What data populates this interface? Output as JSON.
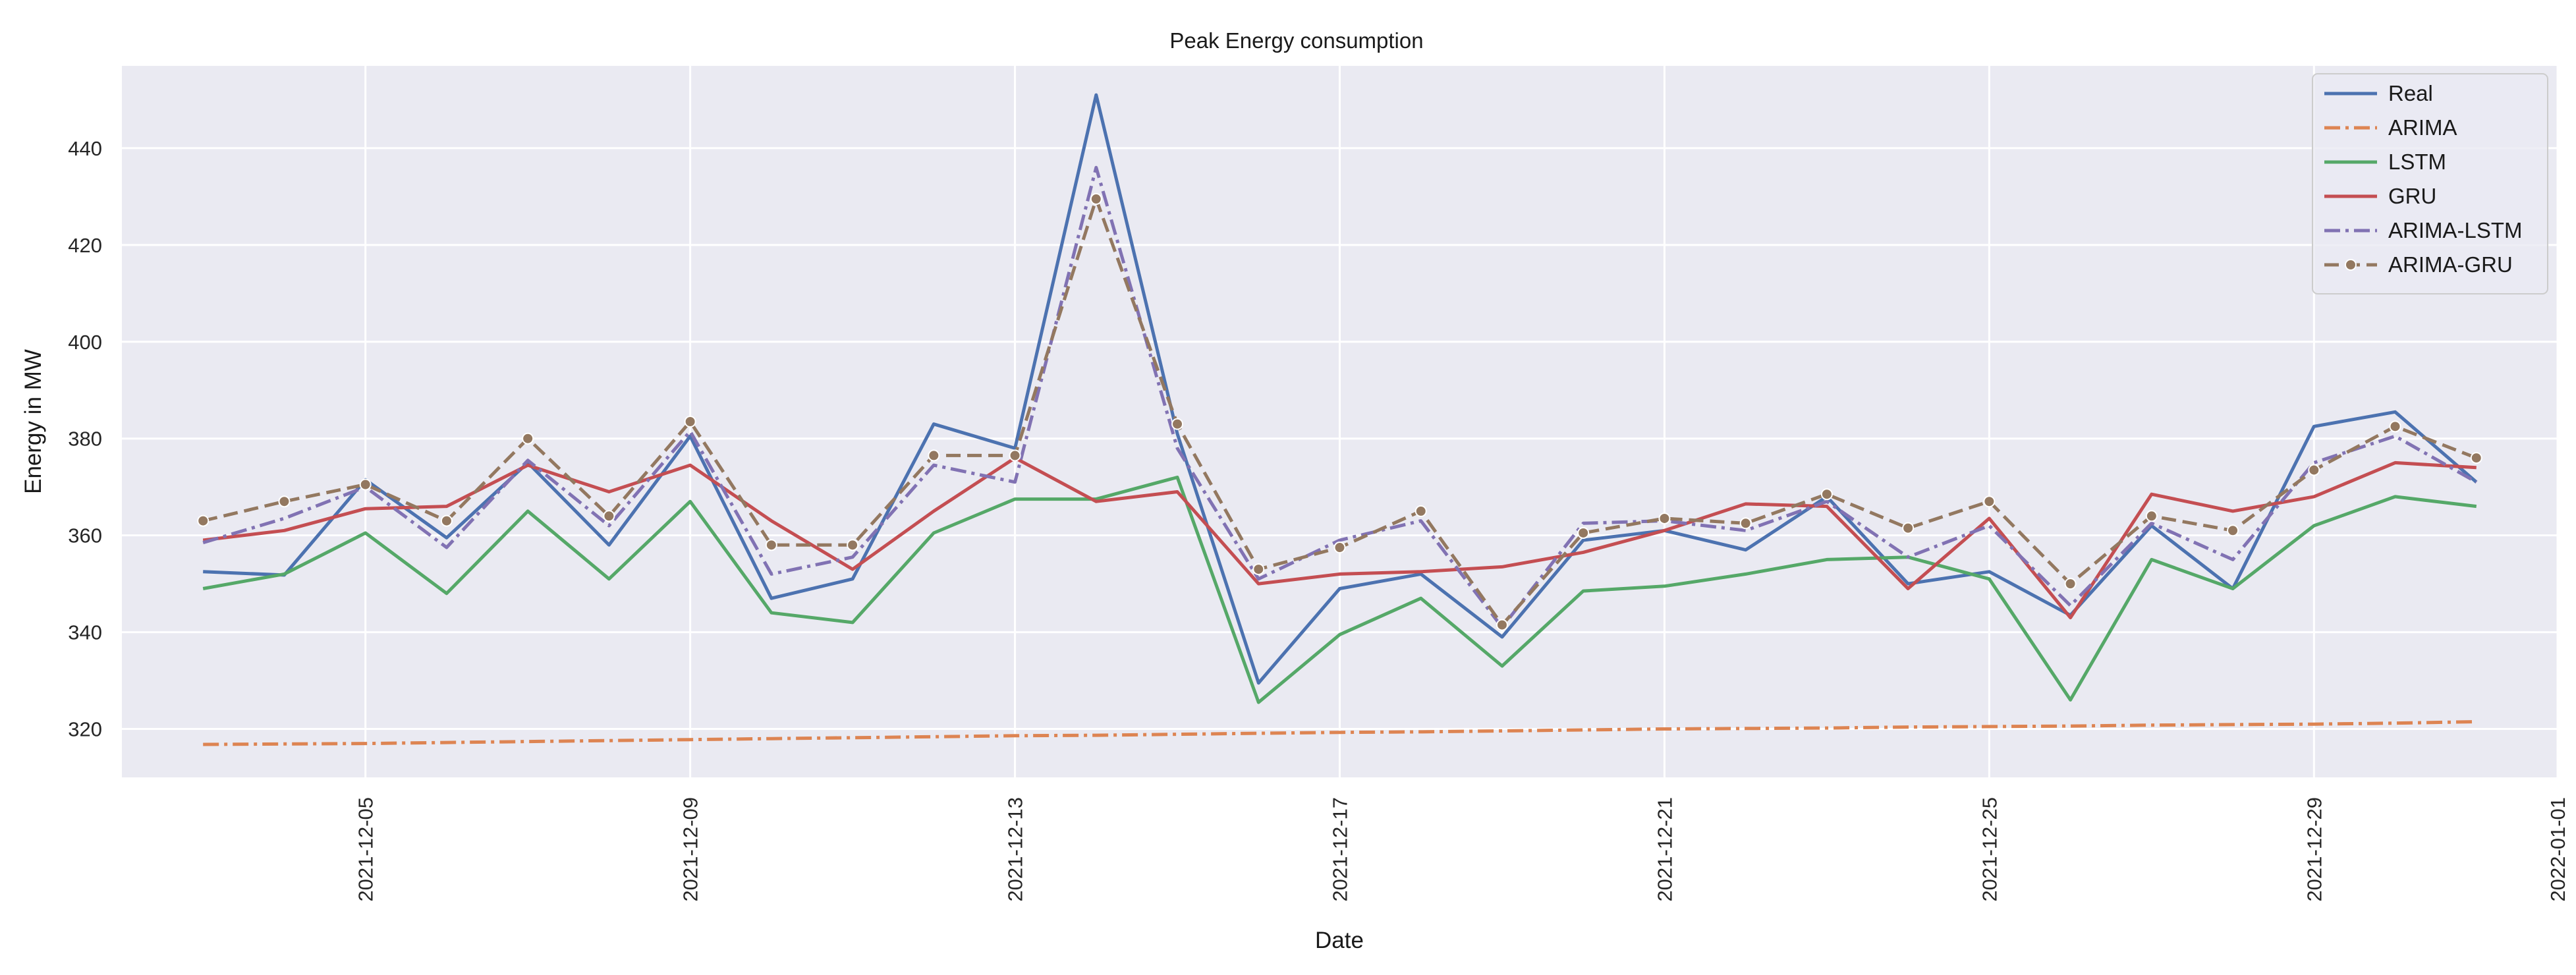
{
  "chart_data": {
    "type": "line",
    "title": "Peak Energy consumption",
    "xlabel": "Date",
    "ylabel": "Energy in MW",
    "xlim": [
      "2021-12-02",
      "2022-01-01"
    ],
    "ylim": [
      310,
      457
    ],
    "yticks": [
      320,
      340,
      360,
      380,
      400,
      420,
      440
    ],
    "xticks": [
      "2021-12-05",
      "2021-12-09",
      "2021-12-13",
      "2021-12-17",
      "2021-12-21",
      "2021-12-25",
      "2021-12-29",
      "2022-01-01"
    ],
    "grid": true,
    "legend_position": "top-right",
    "x": [
      "2021-12-03",
      "2021-12-04",
      "2021-12-05",
      "2021-12-06",
      "2021-12-07",
      "2021-12-08",
      "2021-12-09",
      "2021-12-10",
      "2021-12-11",
      "2021-12-12",
      "2021-12-13",
      "2021-12-14",
      "2021-12-15",
      "2021-12-16",
      "2021-12-17",
      "2021-12-18",
      "2021-12-19",
      "2021-12-20",
      "2021-12-21",
      "2021-12-22",
      "2021-12-23",
      "2021-12-24",
      "2021-12-25",
      "2021-12-26",
      "2021-12-27",
      "2021-12-28",
      "2021-12-29",
      "2021-12-30",
      "2021-12-31"
    ],
    "series": [
      {
        "name": "Real",
        "color": "#4c72b0",
        "style": "solid",
        "marker": "none",
        "values": [
          352.5,
          351.8,
          371.5,
          359.5,
          375.0,
          358.0,
          380.5,
          347.0,
          351.0,
          383.0,
          378.0,
          451.0,
          381.0,
          329.5,
          349.0,
          352.0,
          339.0,
          359.0,
          361.0,
          357.0,
          368.0,
          350.0,
          352.5,
          343.5,
          362.0,
          349.0,
          382.5,
          385.5,
          371.0
        ]
      },
      {
        "name": "ARIMA",
        "color": "#dd8452",
        "style": "dashdot",
        "marker": "none",
        "values": [
          316.8,
          316.9,
          317.0,
          317.2,
          317.4,
          317.6,
          317.8,
          318.0,
          318.2,
          318.4,
          318.6,
          318.7,
          318.9,
          319.1,
          319.3,
          319.4,
          319.6,
          319.8,
          320.0,
          320.1,
          320.2,
          320.4,
          320.5,
          320.6,
          320.8,
          320.9,
          321.0,
          321.2,
          321.5
        ]
      },
      {
        "name": "LSTM",
        "color": "#55a868",
        "style": "solid",
        "marker": "none",
        "values": [
          349.0,
          352.0,
          360.5,
          348.0,
          365.0,
          351.0,
          367.0,
          344.0,
          342.0,
          360.5,
          367.5,
          367.5,
          372.0,
          325.5,
          339.5,
          347.0,
          333.0,
          348.5,
          349.5,
          352.0,
          355.0,
          355.5,
          351.0,
          326.0,
          355.0,
          349.0,
          362.0,
          368.0,
          366.0
        ]
      },
      {
        "name": "GRU",
        "color": "#c44e52",
        "style": "solid",
        "marker": "none",
        "values": [
          359.0,
          361.0,
          365.5,
          366.0,
          374.5,
          369.0,
          374.5,
          363.0,
          353.0,
          365.0,
          376.0,
          367.0,
          369.0,
          350.0,
          352.0,
          352.5,
          353.5,
          356.5,
          361.0,
          366.5,
          366.0,
          349.0,
          363.5,
          343.0,
          368.5,
          365.0,
          368.0,
          375.0,
          374.0
        ]
      },
      {
        "name": "ARIMA-LSTM",
        "color": "#8172b3",
        "style": "dashdot",
        "marker": "none",
        "values": [
          358.5,
          363.5,
          370.0,
          357.5,
          375.5,
          362.0,
          381.5,
          352.0,
          355.5,
          374.5,
          371.0,
          436.0,
          378.0,
          351.0,
          359.0,
          363.0,
          341.0,
          362.5,
          363.0,
          361.0,
          367.0,
          355.5,
          362.0,
          345.5,
          362.5,
          355.0,
          375.0,
          380.5,
          371.0
        ]
      },
      {
        "name": "ARIMA-GRU",
        "color": "#937860",
        "style": "dashed",
        "marker": "circle",
        "values": [
          363.0,
          367.0,
          370.5,
          363.0,
          380.0,
          364.0,
          383.5,
          358.0,
          358.0,
          376.5,
          376.5,
          429.5,
          383.0,
          353.0,
          357.5,
          365.0,
          341.5,
          360.5,
          363.5,
          362.5,
          368.5,
          361.5,
          367.0,
          350.0,
          364.0,
          361.0,
          373.5,
          382.5,
          376.0
        ]
      }
    ]
  }
}
